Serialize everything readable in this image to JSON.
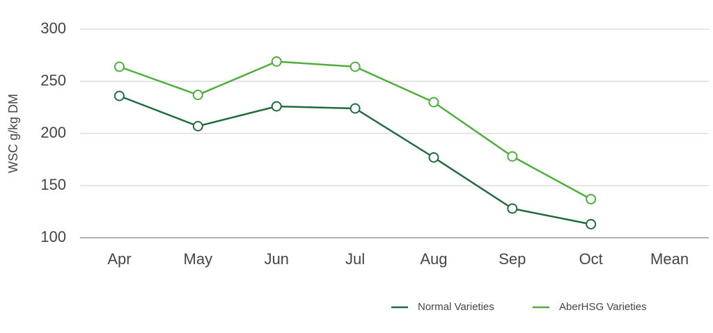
{
  "chart_data": {
    "type": "line",
    "y_label": "WSC g/kg DM",
    "categories": [
      "Apr",
      "May",
      "Jun",
      "Jul",
      "Aug",
      "Sep",
      "Oct",
      "Mean"
    ],
    "series": [
      {
        "name": "Normal Varieties",
        "color": "#1e6b3c",
        "values": [
          236,
          207,
          226,
          224,
          177,
          128,
          113,
          null
        ]
      },
      {
        "name": "AberHSG Varieties",
        "color": "#4caf3a",
        "values": [
          264,
          237,
          269,
          264,
          230,
          178,
          137,
          null
        ]
      }
    ],
    "ylim": [
      100,
      300
    ],
    "yticks": [
      100,
      150,
      200,
      250,
      300
    ],
    "grid": true,
    "legend": "bottom-right"
  }
}
